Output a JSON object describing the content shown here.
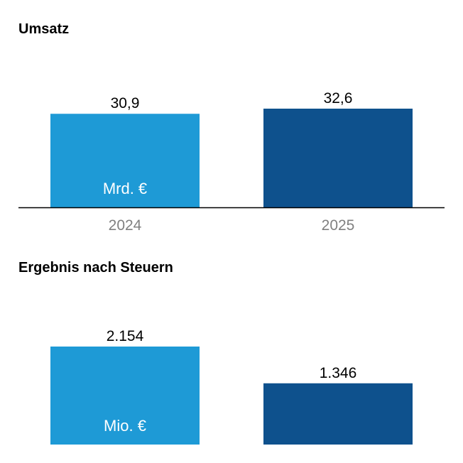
{
  "colors": {
    "bar_2024": "#1e9ad6",
    "bar_2025": "#0e518d",
    "axis": "#000000",
    "tick_label": "#808080",
    "value_label": "#000000",
    "unit_label": "#ffffff"
  },
  "chart_data": [
    {
      "type": "bar",
      "title": "Umsatz",
      "unit": "Mrd. €",
      "categories": [
        "2024",
        "2025"
      ],
      "values": [
        30.9,
        32.6
      ],
      "value_labels": [
        "30,9",
        "32,6"
      ],
      "show_category_labels": true,
      "ylim": [
        0,
        32.6
      ],
      "grid": false,
      "legend": "none"
    },
    {
      "type": "bar",
      "title": "Ergebnis nach Steuern",
      "unit": "Mio. €",
      "categories": [
        "2024",
        "2025"
      ],
      "values": [
        2154,
        1346
      ],
      "value_labels": [
        "2.154",
        "1.346"
      ],
      "show_category_labels": false,
      "ylim": [
        0,
        2154
      ],
      "grid": false,
      "legend": "none"
    }
  ]
}
